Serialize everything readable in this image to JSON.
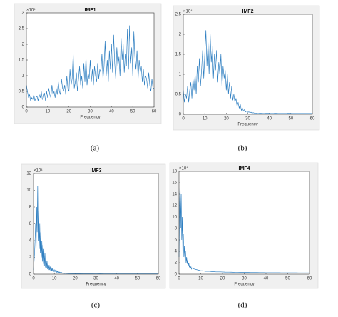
{
  "chart_data": [
    {
      "type": "line",
      "title": "IMF1",
      "xlabel": "Frequency",
      "y_multiplier": "×10⁴",
      "caption": "(a)",
      "color": "#2f7fc1",
      "xlim": [
        0,
        60
      ],
      "xticks": [
        0,
        10,
        20,
        30,
        40,
        50,
        60
      ],
      "ylim": [
        0,
        3
      ],
      "yticks": [
        0,
        0.5,
        1,
        1.5,
        2,
        2.5,
        3
      ],
      "x": [
        0,
        0.5,
        1,
        1.5,
        2,
        2.5,
        3,
        3.5,
        4,
        4.5,
        5,
        5.5,
        6,
        6.5,
        7,
        7.5,
        8,
        8.5,
        9,
        9.5,
        10,
        10.5,
        11,
        11.5,
        12,
        12.5,
        13,
        13.5,
        14,
        14.5,
        15,
        15.5,
        16,
        16.5,
        17,
        17.5,
        18,
        18.5,
        19,
        19.5,
        20,
        20.5,
        21,
        21.5,
        22,
        22.5,
        23,
        23.5,
        24,
        24.5,
        25,
        25.5,
        26,
        26.5,
        27,
        27.5,
        28,
        28.5,
        29,
        29.5,
        30,
        30.5,
        31,
        31.5,
        32,
        32.5,
        33,
        33.5,
        34,
        34.5,
        35,
        35.5,
        36,
        36.5,
        37,
        37.5,
        38,
        38.5,
        39,
        39.5,
        40,
        40.5,
        41,
        41.5,
        42,
        42.5,
        43,
        43.5,
        44,
        44.5,
        45,
        45.5,
        46,
        46.5,
        47,
        47.5,
        48,
        48.5,
        49,
        49.5,
        50,
        50.5,
        51,
        51.5,
        52,
        52.5,
        53,
        53.5,
        54,
        54.5,
        55,
        55.5,
        56,
        56.5,
        57,
        57.5,
        58,
        58.5,
        59,
        59.5,
        60
      ],
      "values": [
        0.7,
        0.5,
        0.3,
        0.4,
        0.2,
        0.3,
        0.25,
        0.4,
        0.2,
        0.3,
        0.35,
        0.2,
        0.4,
        0.3,
        0.5,
        0.25,
        0.3,
        0.45,
        0.2,
        0.5,
        0.3,
        0.6,
        0.4,
        0.3,
        0.7,
        0.4,
        0.5,
        0.3,
        0.6,
        0.4,
        0.8,
        0.5,
        0.4,
        0.9,
        0.6,
        0.5,
        0.7,
        0.4,
        1.0,
        0.6,
        0.5,
        1.2,
        0.7,
        0.9,
        1.7,
        0.6,
        0.8,
        1.1,
        0.5,
        0.9,
        1.3,
        0.7,
        1.0,
        0.6,
        1.4,
        0.8,
        1.6,
        0.7,
        1.1,
        0.9,
        1.5,
        0.8,
        1.2,
        0.7,
        1.3,
        1.0,
        0.8,
        1.4,
        0.9,
        1.2,
        1.1,
        1.7,
        0.9,
        1.3,
        2.1,
        1.0,
        1.5,
        0.8,
        1.8,
        1.2,
        2.0,
        1.1,
        2.3,
        1.4,
        0.9,
        1.9,
        1.3,
        1.6,
        1.0,
        2.2,
        1.5,
        2.0,
        1.1,
        1.7,
        1.3,
        2.5,
        1.2,
        2.6,
        1.4,
        1.9,
        1.0,
        2.4,
        1.6,
        1.2,
        1.8,
        0.9,
        1.5,
        1.1,
        1.3,
        0.8,
        1.2,
        0.7,
        1.0,
        0.9,
        0.6,
        1.1,
        0.7,
        0.5,
        0.9,
        0.6,
        0.6
      ]
    },
    {
      "type": "line",
      "title": "IMF2",
      "xlabel": "Frequency",
      "y_multiplier": "×10⁴",
      "caption": "(b)",
      "color": "#2f7fc1",
      "xlim": [
        0,
        60
      ],
      "xticks": [
        0,
        10,
        20,
        30,
        40,
        50,
        60
      ],
      "ylim": [
        0,
        2.5
      ],
      "yticks": [
        0,
        0.5,
        1,
        1.5,
        2,
        2.5
      ],
      "x": [
        0,
        0.5,
        1,
        1.5,
        2,
        2.5,
        3,
        3.5,
        4,
        4.5,
        5,
        5.5,
        6,
        6.5,
        7,
        7.5,
        8,
        8.5,
        9,
        9.5,
        10,
        10.5,
        11,
        11.5,
        12,
        12.5,
        13,
        13.5,
        14,
        14.5,
        15,
        15.5,
        16,
        16.5,
        17,
        17.5,
        18,
        18.5,
        19,
        19.5,
        20,
        20.5,
        21,
        21.5,
        22,
        22.5,
        23,
        23.5,
        24,
        24.5,
        25,
        25.5,
        26,
        26.5,
        27,
        27.5,
        28,
        28.5,
        29,
        29.5,
        30,
        30.5,
        31,
        31.5,
        32,
        32.5,
        33,
        33.5,
        34,
        34.5,
        35,
        36,
        37,
        38,
        39,
        40,
        41,
        42,
        43,
        44,
        45,
        46,
        47,
        48,
        49,
        50,
        51,
        52,
        53,
        54,
        55,
        56,
        57,
        58,
        59,
        60
      ],
      "values": [
        0.6,
        0.3,
        0.5,
        0.4,
        0.7,
        0.3,
        0.6,
        0.8,
        0.4,
        0.9,
        0.6,
        1.0,
        0.5,
        1.2,
        0.8,
        1.4,
        0.7,
        1.1,
        1.6,
        0.9,
        1.5,
        2.1,
        1.2,
        1.8,
        1.0,
        2.0,
        1.3,
        1.7,
        0.9,
        1.5,
        1.1,
        1.6,
        0.8,
        1.3,
        1.0,
        1.5,
        0.7,
        1.2,
        0.9,
        1.1,
        0.6,
        1.0,
        0.5,
        0.8,
        0.4,
        0.7,
        0.35,
        0.5,
        0.3,
        0.4,
        0.2,
        0.3,
        0.15,
        0.25,
        0.1,
        0.15,
        0.08,
        0.12,
        0.06,
        0.08,
        0.05,
        0.06,
        0.04,
        0.05,
        0.03,
        0.04,
        0.03,
        0.02,
        0.03,
        0.02,
        0.02,
        0.03,
        0.02,
        0.02,
        0.03,
        0.02,
        0.02,
        0.02,
        0.03,
        0.02,
        0.02,
        0.02,
        0.02,
        0.02,
        0.03,
        0.02,
        0.02,
        0.02,
        0.02,
        0.02,
        0.02,
        0.02,
        0.02,
        0.02,
        0.02,
        0.02
      ]
    },
    {
      "type": "line",
      "title": "IMF3",
      "xlabel": "Frequency",
      "y_multiplier": "×10⁴",
      "caption": "(c)",
      "color": "#2f7fc1",
      "xlim": [
        0,
        60
      ],
      "xticks": [
        0,
        10,
        20,
        30,
        40,
        50,
        60
      ],
      "ylim": [
        0,
        12
      ],
      "yticks": [
        0,
        2,
        4,
        6,
        8,
        10,
        12
      ],
      "x": [
        0,
        0.25,
        0.5,
        0.75,
        1,
        1.25,
        1.5,
        1.75,
        2,
        2.25,
        2.5,
        2.75,
        3,
        3.25,
        3.5,
        3.75,
        4,
        4.25,
        4.5,
        4.75,
        5,
        5.25,
        5.5,
        5.75,
        6,
        6.25,
        6.5,
        6.75,
        7,
        7.25,
        7.5,
        7.75,
        8,
        8.25,
        8.5,
        8.75,
        9,
        9.25,
        9.5,
        9.75,
        10,
        10.25,
        10.5,
        10.75,
        11,
        11.25,
        11.5,
        11.75,
        12,
        12.25,
        12.5,
        12.75,
        13,
        13.25,
        13.5,
        13.75,
        14,
        14.25,
        14.5,
        14.75,
        15,
        16,
        18,
        20,
        22,
        24,
        26,
        28,
        30,
        32,
        34,
        36,
        38,
        40,
        42,
        44,
        46,
        48,
        50,
        52,
        54,
        56,
        58,
        60
      ],
      "values": [
        0.5,
        1.5,
        2.5,
        4,
        6,
        3,
        8,
        5,
        10.5,
        4,
        7.5,
        3,
        6,
        2.5,
        5,
        2,
        4,
        1.5,
        3.5,
        1.2,
        3,
        1,
        2.5,
        0.8,
        2,
        0.7,
        1.6,
        0.6,
        1.3,
        0.5,
        1.1,
        0.5,
        0.9,
        0.4,
        0.8,
        0.4,
        0.7,
        0.35,
        0.6,
        0.3,
        0.5,
        0.3,
        0.45,
        0.25,
        0.4,
        0.2,
        0.35,
        0.2,
        0.3,
        0.18,
        0.25,
        0.15,
        0.22,
        0.12,
        0.2,
        0.1,
        0.15,
        0.1,
        0.12,
        0.08,
        0.1,
        0.08,
        0.06,
        0.05,
        0.05,
        0.04,
        0.04,
        0.04,
        0.03,
        0.04,
        0.03,
        0.03,
        0.03,
        0.03,
        0.03,
        0.03,
        0.03,
        0.03,
        0.03,
        0.03,
        0.03,
        0.03,
        0.03,
        0.03
      ]
    },
    {
      "type": "line",
      "title": "IMF4",
      "xlabel": "Frequency",
      "y_multiplier": "×10⁴",
      "caption": "(d)",
      "color": "#2f7fc1",
      "xlim": [
        0,
        60
      ],
      "xticks": [
        0,
        10,
        20,
        30,
        40,
        50,
        60
      ],
      "ylim": [
        0,
        18
      ],
      "yticks": [
        0,
        2,
        4,
        6,
        8,
        10,
        12,
        14,
        16,
        18
      ],
      "x": [
        0,
        0.25,
        0.5,
        0.75,
        1,
        1.25,
        1.5,
        1.75,
        2,
        2.25,
        2.5,
        2.75,
        3,
        3.25,
        3.5,
        3.75,
        4,
        4.25,
        4.5,
        4.75,
        5,
        5.25,
        5.5,
        5.75,
        6,
        7,
        8,
        9,
        10,
        11,
        12,
        13,
        14,
        15,
        16,
        17,
        18,
        19,
        20,
        21,
        22,
        23,
        24,
        25,
        26,
        27,
        28,
        29,
        30,
        31,
        32,
        33,
        34,
        35,
        36,
        37,
        38,
        39,
        40,
        41,
        42,
        43,
        44,
        45,
        46,
        47,
        48,
        49,
        50,
        51,
        52,
        53,
        54,
        55,
        56,
        57,
        58,
        59,
        60
      ],
      "values": [
        3,
        12,
        16,
        8,
        14,
        6,
        10,
        4,
        7,
        3,
        5,
        2.5,
        4,
        2,
        3,
        1.8,
        2.5,
        1.5,
        2,
        1.2,
        1.6,
        1,
        1.3,
        0.9,
        1.1,
        0.9,
        0.8,
        0.7,
        0.6,
        0.6,
        0.5,
        0.5,
        0.5,
        0.45,
        0.45,
        0.4,
        0.4,
        0.4,
        0.38,
        0.36,
        0.35,
        0.35,
        0.34,
        0.33,
        0.32,
        0.32,
        0.31,
        0.3,
        0.3,
        0.3,
        0.3,
        0.29,
        0.28,
        0.28,
        0.28,
        0.27,
        0.27,
        0.27,
        0.26,
        0.26,
        0.26,
        0.25,
        0.25,
        0.25,
        0.25,
        0.24,
        0.24,
        0.24,
        0.24,
        0.23,
        0.23,
        0.23,
        0.23,
        0.22,
        0.22,
        0.22,
        0.22,
        0.22,
        0.22
      ]
    }
  ]
}
